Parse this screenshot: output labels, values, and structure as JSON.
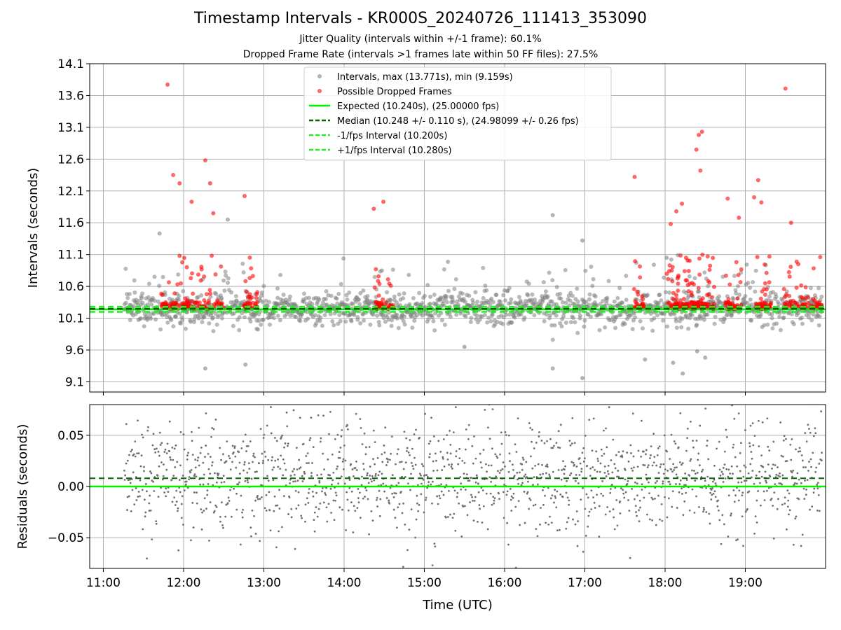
{
  "chart_data": [
    {
      "type": "scatter",
      "title": "Timestamp Intervals - KR000S_20240726_111413_353090",
      "subtitle_lines": [
        "Jitter Quality (intervals within +/-1 frame): 60.1%",
        "Dropped Frame Rate (intervals >1 frames late within 50 FF files): 27.5%"
      ],
      "xlabel": "",
      "ylabel": "Intervals (seconds)",
      "xlim": [
        10.83,
        20.0
      ],
      "ylim": [
        8.94,
        14.1
      ],
      "y_ticks": [
        "9.1",
        "9.6",
        "10.1",
        "10.6",
        "11.1",
        "11.6",
        "12.1",
        "12.6",
        "13.1",
        "13.6",
        "14.1"
      ],
      "y_tick_values": [
        9.1,
        9.6,
        10.1,
        10.6,
        11.1,
        11.6,
        12.1,
        12.6,
        13.1,
        13.6,
        14.1
      ],
      "x_tick_values": [
        11,
        12,
        13,
        14,
        15,
        16,
        17,
        18,
        19
      ],
      "grid": true,
      "legend_position": "top-center",
      "legend": [
        "Intervals, max (13.771s), min (9.159s)",
        "Possible Dropped Frames",
        "Expected (10.240s), (25.00000 fps)",
        "Median (10.248 +/- 0.110 s), (24.98099 +/- 0.26 fps)",
        "-1/fps Interval (10.200s)",
        "+1/fps Interval (10.280s)"
      ],
      "reference_lines": {
        "expected": 10.24,
        "median": 10.248,
        "minus_1_fps": 10.2,
        "plus_1_fps": 10.28
      },
      "colors": {
        "intervals": "#808080",
        "dropped": "#ff0000",
        "expected": "#00ee00",
        "median": "#006400",
        "bounds": "#22ee22",
        "grid": "#b0b0b0"
      },
      "generated_distribution": {
        "x_start": 11.26,
        "x_end": 19.96,
        "count": 1500,
        "gray_median": 10.25,
        "gray_spread": 0.13
      },
      "dropped_clusters": [
        {
          "x": [
            11.72,
            12.5
          ],
          "count": 120
        },
        {
          "x": [
            12.75,
            12.92
          ],
          "count": 35
        },
        {
          "x": [
            14.38,
            14.62
          ],
          "count": 45
        },
        {
          "x": [
            17.6,
            17.75
          ],
          "count": 25
        },
        {
          "x": [
            18.02,
            18.62
          ],
          "count": 140
        },
        {
          "x": [
            18.75,
            18.95
          ],
          "count": 40
        },
        {
          "x": [
            19.12,
            19.32
          ],
          "count": 40
        },
        {
          "x": [
            19.48,
            19.96
          ],
          "count": 70
        }
      ],
      "dropped_outliers": [
        [
          11.8,
          13.771
        ],
        [
          11.87,
          12.35
        ],
        [
          11.95,
          12.22
        ],
        [
          12.1,
          11.93
        ],
        [
          12.27,
          12.58
        ],
        [
          12.33,
          12.22
        ],
        [
          12.37,
          11.75
        ],
        [
          12.76,
          12.02
        ],
        [
          14.37,
          11.82
        ],
        [
          14.49,
          11.93
        ],
        [
          17.62,
          12.32
        ],
        [
          18.07,
          11.58
        ],
        [
          18.14,
          11.78
        ],
        [
          18.21,
          11.9
        ],
        [
          18.39,
          12.75
        ],
        [
          18.42,
          12.98
        ],
        [
          18.46,
          13.03
        ],
        [
          18.44,
          12.42
        ],
        [
          18.78,
          11.98
        ],
        [
          18.92,
          11.68
        ],
        [
          19.11,
          12.0
        ],
        [
          19.16,
          12.27
        ],
        [
          19.2,
          11.92
        ],
        [
          19.5,
          13.71
        ],
        [
          19.57,
          11.6
        ]
      ],
      "gray_outliers": [
        [
          11.7,
          11.43
        ],
        [
          12.55,
          11.65
        ],
        [
          16.6,
          11.72
        ],
        [
          16.97,
          11.32
        ],
        [
          18.02,
          11.05
        ],
        [
          12.27,
          9.31
        ],
        [
          12.77,
          9.37
        ],
        [
          16.97,
          9.159
        ],
        [
          16.6,
          9.31
        ],
        [
          15.5,
          9.65
        ],
        [
          17.75,
          9.45
        ],
        [
          18.1,
          9.4
        ],
        [
          18.22,
          9.23
        ],
        [
          18.4,
          9.58
        ],
        [
          18.5,
          9.48
        ]
      ]
    },
    {
      "type": "scatter",
      "title": "",
      "xlabel": "Time (UTC)",
      "ylabel": "Residuals (seconds)",
      "xlim": [
        10.83,
        20.0
      ],
      "ylim": [
        -0.08,
        0.08
      ],
      "y_ticks": [
        "0.05",
        "0.00",
        "−0.05"
      ],
      "y_tick_values": [
        0.05,
        0.0,
        -0.05
      ],
      "x_ticks": [
        "11:00",
        "12:00",
        "13:00",
        "14:00",
        "15:00",
        "16:00",
        "17:00",
        "18:00",
        "19:00"
      ],
      "x_tick_values": [
        11,
        12,
        13,
        14,
        15,
        16,
        17,
        18,
        19
      ],
      "grid": true,
      "reference_lines": {
        "zero": 0.0,
        "median_offset": 0.008
      },
      "colors": {
        "points": "#707070",
        "zero_line": "#00ee00",
        "median_line": "#006400",
        "grid": "#b0b0b0"
      },
      "generated_distribution": {
        "x_start": 11.26,
        "x_end": 19.96,
        "count": 1500,
        "spread": 0.028
      }
    }
  ]
}
